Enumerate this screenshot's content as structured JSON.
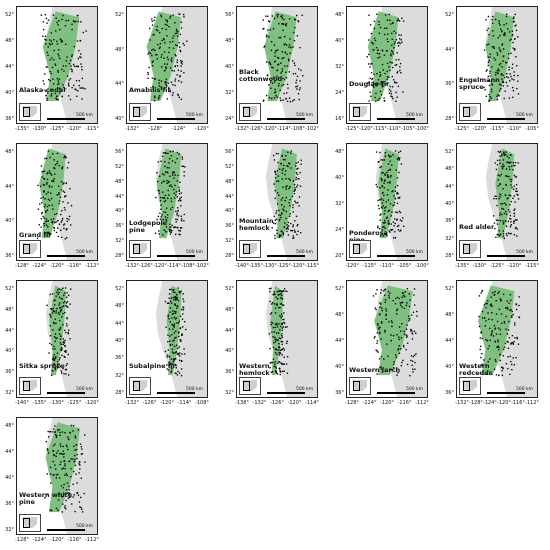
{
  "figure": {
    "colors": {
      "range": "#7fbf7f",
      "points": "#000000",
      "land": "#dcdcdc",
      "ocean": "#ffffff"
    },
    "scale_label": "500 km",
    "panels": [
      {
        "id": "alaska-cedar",
        "label": "Alaska-cedar",
        "lat_ticks": [
          "52°",
          "48°",
          "44°",
          "40°",
          "36°"
        ],
        "lon_ticks": [
          "-135°",
          "-130°",
          "-125°",
          "-120°",
          "-115°"
        ]
      },
      {
        "id": "amabilis-fir",
        "label": "Amabilis fir",
        "lat_ticks": [
          "52°",
          "48°",
          "44°",
          "40°"
        ],
        "lon_ticks": [
          "-132°",
          "-128°",
          "-124°",
          "-120°"
        ]
      },
      {
        "id": "black-cottonwood",
        "label": "Black cottonwood",
        "lat_ticks": [
          "56°",
          "48°",
          "40°",
          "32°",
          "24°"
        ],
        "lon_ticks": [
          "-132°",
          "-126°",
          "-120°",
          "-114°",
          "-108°",
          "-102°"
        ]
      },
      {
        "id": "douglas-fir",
        "label": "Douglas-fir",
        "lat_ticks": [
          "48°",
          "40°",
          "32°",
          "24°",
          "16°"
        ],
        "lon_ticks": [
          "-125°",
          "-120°",
          "-115°",
          "-110°",
          "-105°",
          "-100°"
        ]
      },
      {
        "id": "engelmann-spruce",
        "label": "Engelmann spruce",
        "lat_ticks": [
          "52°",
          "44°",
          "36°",
          "28°"
        ],
        "lon_ticks": [
          "-125°",
          "-120°",
          "-115°",
          "-110°",
          "-105°"
        ]
      },
      {
        "id": "grand-fir",
        "label": "Grand fir",
        "lat_ticks": [
          "48°",
          "44°",
          "40°",
          "36°"
        ],
        "lon_ticks": [
          "-128°",
          "-124°",
          "-120°",
          "-116°",
          "-112°"
        ]
      },
      {
        "id": "lodgepole-pine",
        "label": "Lodgepole pine",
        "lat_ticks": [
          "56°",
          "52°",
          "48°",
          "44°",
          "40°",
          "36°",
          "32°",
          "28°"
        ],
        "lon_ticks": [
          "-132°",
          "-126°",
          "-120°",
          "-114°",
          "-108°",
          "-102°"
        ]
      },
      {
        "id": "mountain-hemlock",
        "label": "Mountain hemlock",
        "lat_ticks": [
          "56°",
          "52°",
          "48°",
          "44°",
          "40°",
          "36°",
          "32°",
          "28°"
        ],
        "lon_ticks": [
          "-140°",
          "-135°",
          "-130°",
          "-125°",
          "-120°",
          "-115°"
        ]
      },
      {
        "id": "ponderosa-pine",
        "label": "Ponderosa pine",
        "lat_ticks": [
          "48°",
          "40°",
          "32°",
          "24°",
          "20°"
        ],
        "lon_ticks": [
          "-120°",
          "-115°",
          "-110°",
          "-105°",
          "-100°"
        ]
      },
      {
        "id": "red-alder",
        "label": "Red alder",
        "lat_ticks": [
          "52°",
          "48°",
          "44°",
          "40°",
          "36°",
          "32°",
          "28°"
        ],
        "lon_ticks": [
          "-135°",
          "-130°",
          "-125°",
          "-120°",
          "-115°"
        ]
      },
      {
        "id": "sitka-spruce",
        "label": "Sitka spruce",
        "lat_ticks": [
          "52°",
          "48°",
          "44°",
          "40°",
          "36°",
          "32°"
        ],
        "lon_ticks": [
          "-140°",
          "-135°",
          "-130°",
          "-125°",
          "-120°"
        ]
      },
      {
        "id": "subalpine-fir",
        "label": "Subalpine fir",
        "lat_ticks": [
          "52°",
          "48°",
          "44°",
          "40°",
          "36°",
          "32°",
          "28°"
        ],
        "lon_ticks": [
          "-132°",
          "-126°",
          "-120°",
          "-114°",
          "-108°"
        ]
      },
      {
        "id": "western-hemlock",
        "label": "Western hemlock",
        "lat_ticks": [
          "52°",
          "48°",
          "44°",
          "40°",
          "36°",
          "32°"
        ],
        "lon_ticks": [
          "-138°",
          "-132°",
          "-126°",
          "-120°",
          "-114°"
        ]
      },
      {
        "id": "western-larch",
        "label": "Western larch",
        "lat_ticks": [
          "52°",
          "48°",
          "44°",
          "40°",
          "36°"
        ],
        "lon_ticks": [
          "-128°",
          "-124°",
          "-120°",
          "-116°",
          "-112°"
        ]
      },
      {
        "id": "western-redcedar",
        "label": "Western redcedar",
        "lat_ticks": [
          "52°",
          "48°",
          "44°",
          "40°",
          "36°"
        ],
        "lon_ticks": [
          "-132°",
          "-128°",
          "-124°",
          "-120°",
          "-116°",
          "-112°"
        ]
      },
      {
        "id": "western-white-pine",
        "label": "Western white pine",
        "lat_ticks": [
          "48°",
          "44°",
          "40°",
          "36°",
          "32°"
        ],
        "lon_ticks": [
          "-128°",
          "-124°",
          "-120°",
          "-116°",
          "-112°"
        ]
      }
    ]
  }
}
